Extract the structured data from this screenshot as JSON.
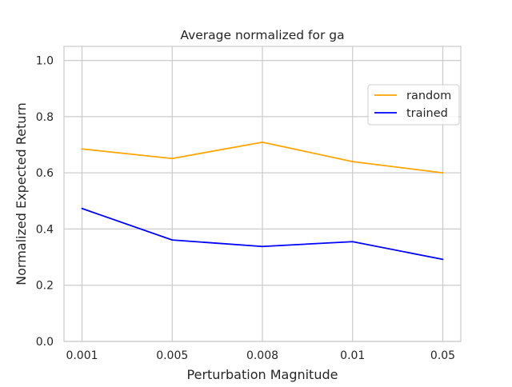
{
  "chart_data": {
    "type": "line",
    "title": "Average normalized for ga",
    "xlabel": "Perturbation Magnitude",
    "ylabel": "Normalized Expected Return",
    "categories": [
      "0.001",
      "0.005",
      "0.008",
      "0.01",
      "0.05"
    ],
    "ylim": [
      0.0,
      1.05
    ],
    "yticks": [
      0.0,
      0.2,
      0.4,
      0.6,
      0.8,
      1.0
    ],
    "ytick_labels": [
      "0.0",
      "0.2",
      "0.4",
      "0.6",
      "0.8",
      "1.0"
    ],
    "grid": true,
    "legend_position": "upper-right",
    "series": [
      {
        "name": "random",
        "color": "#FFA500",
        "values": [
          0.685,
          0.651,
          0.709,
          0.64,
          0.6
        ]
      },
      {
        "name": "trained",
        "color": "#0000FF",
        "values": [
          0.473,
          0.361,
          0.338,
          0.355,
          0.292
        ]
      }
    ]
  }
}
